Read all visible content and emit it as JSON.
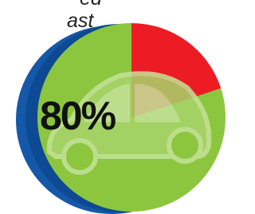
{
  "chart_data": {
    "type": "pie",
    "title_lines": [
      "ed",
      "ast"
    ],
    "values": [
      80,
      20
    ],
    "value_labels": [
      "80%",
      null
    ],
    "colors": [
      "#8cc63f",
      "#ed1c24"
    ]
  }
}
